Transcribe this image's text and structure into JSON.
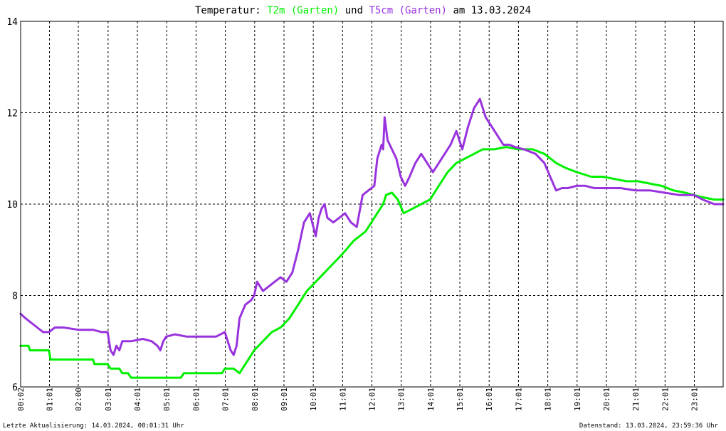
{
  "title": {
    "prefix": "Temperatur: ",
    "series1": "T2m (Garten)",
    "middle": " und ",
    "series2": "T5cm (Garten)",
    "suffix": " am 13.03.2024"
  },
  "footer": {
    "left": "Letzte Aktualisierung: 14.03.2024, 00:01:31 Uhr",
    "right": "Datenstand: 13.03.2024, 23:59:36 Uhr"
  },
  "colors": {
    "t2m": "#00f000",
    "t5cm": "#9933dd",
    "grid": "#000000",
    "border": "#000000",
    "background": "#ffffff"
  },
  "chart_data": {
    "type": "line",
    "title": "Temperatur: T2m (Garten) und T5cm (Garten) am 13.03.2024",
    "xlabel": "",
    "ylabel": "",
    "xlim": [
      0.033,
      24.0
    ],
    "ylim": [
      6,
      14
    ],
    "yticks": [
      6,
      8,
      10,
      12,
      14
    ],
    "ytick_labels": [
      "6",
      "8",
      "10",
      "12",
      "14"
    ],
    "xticks": [
      0.033,
      1.017,
      2.0,
      3.017,
      4.017,
      5.017,
      6.017,
      7.017,
      8.017,
      9.017,
      10.017,
      11.017,
      12.017,
      13.017,
      14.017,
      15.017,
      16.017,
      17.017,
      18.017,
      19.017,
      20.017,
      21.017,
      22.017,
      23.017
    ],
    "xtick_labels": [
      "00:02",
      "01:01",
      "02:00",
      "03:01",
      "04:01",
      "05:01",
      "06:01",
      "07:01",
      "08:01",
      "09:01",
      "10:01",
      "11:01",
      "12:01",
      "13:01",
      "14:01",
      "15:01",
      "16:01",
      "17:01",
      "18:01",
      "19:01",
      "20:01",
      "21:01",
      "22:01",
      "23:01"
    ],
    "grid": true,
    "series": [
      {
        "name": "T2m (Garten)",
        "color": "#00f000",
        "x": [
          0.03,
          0.3,
          0.35,
          1.0,
          1.05,
          2.5,
          2.55,
          3.0,
          3.1,
          3.4,
          3.5,
          3.7,
          3.8,
          4.5,
          5.0,
          5.5,
          5.6,
          6.9,
          7.0,
          7.3,
          7.5,
          7.8,
          8.0,
          8.3,
          8.6,
          8.9,
          9.2,
          9.5,
          9.8,
          10.1,
          10.4,
          10.7,
          11.0,
          11.4,
          11.8,
          12.1,
          12.4,
          12.5,
          12.7,
          12.9,
          13.1,
          13.4,
          13.7,
          14.0,
          14.3,
          14.6,
          14.9,
          15.2,
          15.5,
          15.8,
          16.2,
          16.6,
          17.0,
          17.5,
          17.9,
          18.3,
          18.6,
          19.0,
          19.5,
          19.9,
          20.3,
          20.7,
          21.1,
          21.5,
          21.9,
          22.3,
          22.7,
          23.0,
          23.3,
          23.7,
          24.0
        ],
        "y": [
          6.9,
          6.9,
          6.8,
          6.8,
          6.6,
          6.6,
          6.5,
          6.5,
          6.4,
          6.4,
          6.3,
          6.3,
          6.2,
          6.2,
          6.2,
          6.2,
          6.3,
          6.3,
          6.4,
          6.4,
          6.3,
          6.6,
          6.8,
          7.0,
          7.2,
          7.3,
          7.5,
          7.8,
          8.1,
          8.3,
          8.5,
          8.7,
          8.9,
          9.2,
          9.4,
          9.7,
          10.0,
          10.2,
          10.25,
          10.1,
          9.8,
          9.9,
          10.0,
          10.1,
          10.4,
          10.7,
          10.9,
          11.0,
          11.1,
          11.2,
          11.2,
          11.25,
          11.2,
          11.2,
          11.1,
          10.9,
          10.8,
          10.7,
          10.6,
          10.6,
          10.55,
          10.5,
          10.5,
          10.45,
          10.4,
          10.3,
          10.25,
          10.2,
          10.15,
          10.1,
          10.1
        ]
      },
      {
        "name": "T5cm (Garten)",
        "color": "#9933dd",
        "x": [
          0.03,
          0.2,
          0.4,
          0.6,
          0.8,
          1.0,
          1.2,
          1.5,
          2.0,
          2.5,
          2.8,
          3.0,
          3.1,
          3.2,
          3.3,
          3.4,
          3.5,
          3.8,
          4.2,
          4.5,
          4.7,
          4.8,
          4.9,
          5.0,
          5.3,
          5.7,
          6.2,
          6.7,
          7.0,
          7.1,
          7.2,
          7.3,
          7.4,
          7.5,
          7.7,
          7.9,
          8.0,
          8.1,
          8.3,
          8.5,
          8.7,
          8.9,
          9.1,
          9.3,
          9.5,
          9.7,
          9.9,
          10.1,
          10.2,
          10.3,
          10.4,
          10.5,
          10.7,
          10.9,
          11.1,
          11.3,
          11.5,
          11.7,
          11.9,
          12.1,
          12.2,
          12.35,
          12.4,
          12.45,
          12.55,
          12.7,
          12.85,
          13.0,
          13.15,
          13.3,
          13.5,
          13.7,
          13.9,
          14.1,
          14.3,
          14.5,
          14.7,
          14.9,
          15.1,
          15.3,
          15.5,
          15.7,
          15.9,
          16.1,
          16.3,
          16.5,
          16.7,
          16.9,
          17.2,
          17.6,
          17.9,
          18.1,
          18.3,
          18.5,
          18.7,
          19.0,
          19.3,
          19.6,
          20.0,
          20.5,
          21.0,
          21.5,
          22.0,
          22.5,
          23.0,
          23.3,
          23.7,
          24.0
        ],
        "y": [
          7.6,
          7.5,
          7.4,
          7.3,
          7.2,
          7.2,
          7.3,
          7.3,
          7.25,
          7.25,
          7.2,
          7.2,
          6.8,
          6.7,
          6.9,
          6.8,
          7.0,
          7.0,
          7.05,
          7.0,
          6.9,
          6.8,
          7.0,
          7.1,
          7.15,
          7.1,
          7.1,
          7.1,
          7.2,
          7.0,
          6.8,
          6.7,
          6.9,
          7.5,
          7.8,
          7.9,
          8.0,
          8.3,
          8.1,
          8.2,
          8.3,
          8.4,
          8.3,
          8.5,
          9.0,
          9.6,
          9.8,
          9.3,
          9.7,
          9.9,
          10.0,
          9.7,
          9.6,
          9.7,
          9.8,
          9.6,
          9.5,
          10.2,
          10.3,
          10.4,
          11.0,
          11.3,
          11.2,
          11.9,
          11.4,
          11.2,
          11.0,
          10.6,
          10.4,
          10.6,
          10.9,
          11.1,
          10.9,
          10.7,
          10.9,
          11.1,
          11.3,
          11.6,
          11.2,
          11.7,
          12.1,
          12.3,
          11.9,
          11.7,
          11.5,
          11.3,
          11.3,
          11.25,
          11.2,
          11.1,
          10.9,
          10.6,
          10.3,
          10.35,
          10.35,
          10.4,
          10.4,
          10.35,
          10.35,
          10.35,
          10.3,
          10.3,
          10.25,
          10.2,
          10.2,
          10.1,
          10.0,
          10.0
        ]
      }
    ]
  }
}
